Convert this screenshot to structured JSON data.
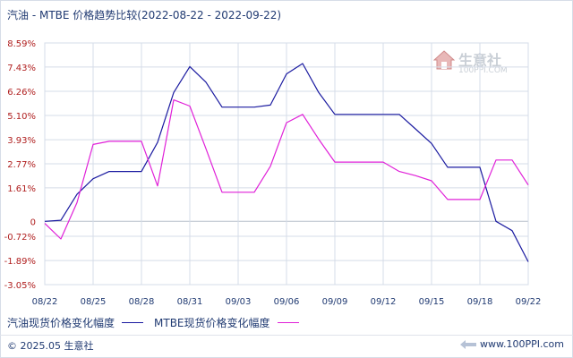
{
  "title": "汽油 - MTBE 价格趋势比较(2022-08-22 - 2022-09-22)",
  "watermark": {
    "name_cn": "生意社",
    "name_en": "100PPI.COM"
  },
  "footer": {
    "copyright": "© 2025.05 生意社",
    "url": "www.100PPI.com"
  },
  "colors": {
    "gasoline": "#1a1aa0",
    "mtbe": "#e020d8",
    "grid": "#d5dce8",
    "axis_text": "#b02020",
    "x_text": "#203a72"
  },
  "chart_data": {
    "type": "line",
    "title": "汽油 - MTBE 价格趋势比较(2022-08-22 - 2022-09-22)",
    "xlabel": "",
    "ylabel": "",
    "y_ticks": [
      "8.59%",
      "7.43%",
      "6.26%",
      "5.10%",
      "3.93%",
      "2.77%",
      "1.61%",
      "0",
      "-0.72%",
      "-1.89%",
      "-3.05%"
    ],
    "y_tick_values": [
      8.59,
      7.43,
      6.26,
      5.1,
      3.93,
      2.77,
      1.61,
      0,
      -0.72,
      -1.89,
      -3.05
    ],
    "ylim": [
      -3.05,
      8.59
    ],
    "x_ticks": [
      "08/22",
      "08/25",
      "08/28",
      "08/31",
      "09/03",
      "09/06",
      "09/09",
      "09/12",
      "09/15",
      "09/18",
      "09/22"
    ],
    "x_tick_days": [
      0,
      3,
      6,
      9,
      12,
      15,
      18,
      21,
      24,
      27,
      30
    ],
    "xlim": [
      0,
      30
    ],
    "grid": true,
    "legend_position": "bottom-left",
    "series": [
      {
        "name": "汽油现货价格变化幅度",
        "days": [
          0,
          1,
          2,
          3,
          4,
          5,
          6,
          7,
          8,
          9,
          10,
          11,
          12,
          13,
          14,
          15,
          16,
          17,
          18,
          19,
          20,
          21,
          22,
          23,
          24,
          25,
          26,
          27,
          28,
          29,
          30
        ],
        "values": [
          0,
          0.05,
          1.3,
          2.05,
          2.4,
          2.4,
          2.4,
          3.8,
          6.2,
          7.45,
          6.7,
          5.5,
          5.5,
          5.5,
          5.6,
          7.1,
          7.6,
          6.2,
          5.15,
          5.15,
          5.15,
          5.15,
          5.15,
          4.45,
          3.75,
          2.6,
          2.6,
          2.6,
          0,
          -0.45,
          -1.95
        ]
      },
      {
        "name": "MTBE现货价格变化幅度",
        "days": [
          0,
          1,
          2,
          3,
          4,
          5,
          6,
          7,
          8,
          9,
          10,
          11,
          12,
          13,
          14,
          15,
          16,
          17,
          18,
          19,
          20,
          21,
          22,
          23,
          24,
          25,
          26,
          27,
          28,
          29,
          30
        ],
        "values": [
          -0.1,
          -0.85,
          0.9,
          3.7,
          3.85,
          3.85,
          3.85,
          1.7,
          5.85,
          5.55,
          3.5,
          1.4,
          1.4,
          1.4,
          2.65,
          4.75,
          5.15,
          3.95,
          2.85,
          2.85,
          2.85,
          2.85,
          2.4,
          2.2,
          1.95,
          1.05,
          1.05,
          1.05,
          2.95,
          2.95,
          1.75
        ]
      }
    ]
  }
}
